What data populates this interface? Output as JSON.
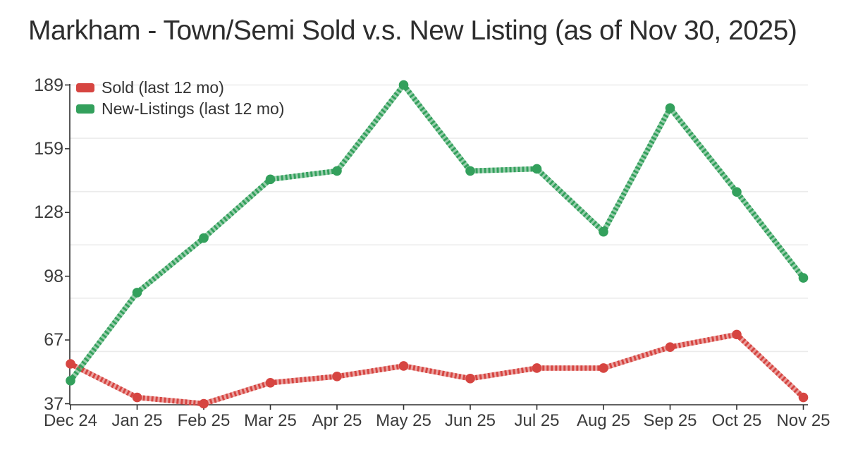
{
  "title": "Markham - Town/Semi Sold v.s. New Listing (as of Nov 30, 2025)",
  "colors": {
    "sold": "#d64541",
    "new_listings": "#33a05c",
    "grid_line": "#ebebeb",
    "axis_line": "#2f2f2f",
    "tick_text": "#3b3b3b",
    "title_text": "#2d2d2d"
  },
  "legend": {
    "items": [
      {
        "label": "Sold (last 12 mo)",
        "series_key": "sold"
      },
      {
        "label": "New-Listings (last 12 mo)",
        "series_key": "new_listings"
      }
    ]
  },
  "chart_data": {
    "type": "line",
    "title": "Markham - Town/Semi Sold v.s. New Listing (as of Nov 30, 2025)",
    "categories": [
      "Dec 24",
      "Jan 25",
      "Feb 25",
      "Mar 25",
      "Apr 25",
      "May 25",
      "Jun 25",
      "Jul 25",
      "Aug 25",
      "Sep 25",
      "Oct 25",
      "Nov 25"
    ],
    "series": [
      {
        "name": "Sold (last 12 mo)",
        "color_key": "sold",
        "values": [
          56,
          40,
          37,
          47,
          50,
          55,
          49,
          54,
          54,
          64,
          70,
          40
        ]
      },
      {
        "name": "New-Listings (last 12 mo)",
        "color_key": "new_listings",
        "values": [
          48,
          90,
          116,
          144,
          148,
          189,
          148,
          149,
          119,
          178,
          138,
          97
        ]
      }
    ],
    "xlabel": "",
    "ylabel": "",
    "ylim": [
      37,
      189
    ],
    "y_ticks": [
      {
        "label": "189",
        "value": 189
      },
      {
        "label": "159",
        "value": 158.6
      },
      {
        "label": "128",
        "value": 128.2
      },
      {
        "label": "98",
        "value": 97.8
      },
      {
        "label": "67",
        "value": 67.4
      },
      {
        "label": "37",
        "value": 37
      }
    ],
    "grid": true,
    "grid_divisions": 6,
    "legend_position": "top-left"
  }
}
